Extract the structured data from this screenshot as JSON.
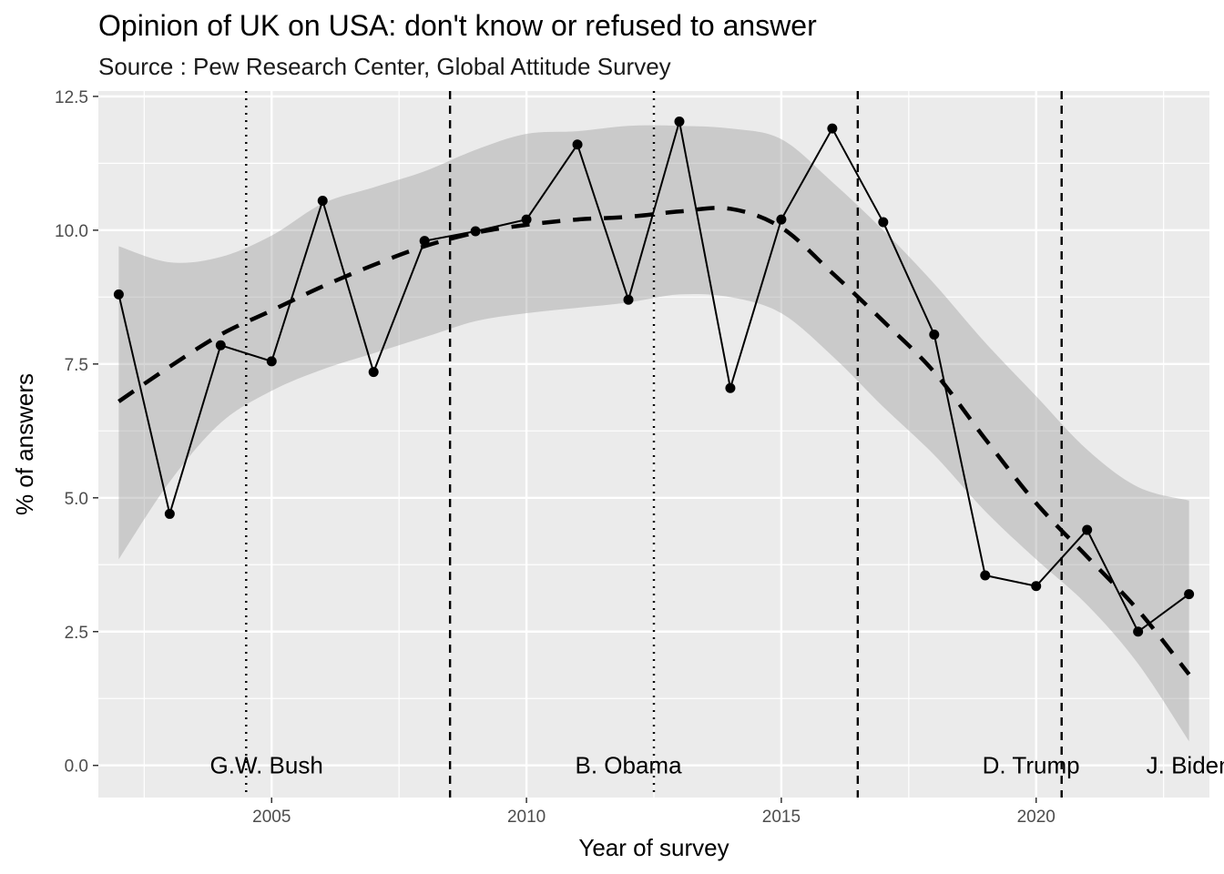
{
  "chart_data": {
    "type": "line",
    "title": "Opinion of UK on USA: don't know or refused to answer",
    "subtitle": "Source : Pew Research Center, Global Attitude Survey",
    "xlabel": "Year of survey",
    "ylabel": "% of answers",
    "xlim": [
      2001.6,
      2023.4
    ],
    "ylim": [
      -0.6,
      12.6
    ],
    "x_ticks": [
      2005,
      2010,
      2015,
      2020
    ],
    "x_tick_labels": [
      "2005",
      "2010",
      "2015",
      "2020"
    ],
    "y_ticks": [
      0,
      2.5,
      5,
      7.5,
      10,
      12.5
    ],
    "y_tick_labels": [
      "0.0",
      "2.5",
      "5.0",
      "7.5",
      "10.0",
      "12.5"
    ],
    "grid": true,
    "series": [
      {
        "x": [
          2002,
          2003,
          2004,
          2005,
          2006,
          2007,
          2008,
          2009,
          2010,
          2011,
          2012,
          2013,
          2014,
          2015,
          2016,
          2017,
          2018,
          2019,
          2020,
          2021,
          2022,
          2023
        ],
        "values": [
          8.8,
          4.7,
          7.85,
          7.55,
          10.55,
          7.35,
          9.8,
          9.98,
          10.2,
          11.6,
          8.7,
          12.03,
          7.05,
          10.2,
          11.9,
          10.15,
          8.05,
          3.55,
          3.35,
          4.4,
          2.5,
          3.2
        ]
      }
    ],
    "trend": {
      "style": "dashed",
      "x": [
        2002,
        2003,
        2004,
        2005,
        2006,
        2007,
        2008,
        2009,
        2010,
        2011,
        2012,
        2013,
        2014,
        2015,
        2016,
        2017,
        2018,
        2019,
        2020,
        2021,
        2022,
        2023
      ],
      "values": [
        6.8,
        7.45,
        8.05,
        8.5,
        8.95,
        9.35,
        9.7,
        9.95,
        10.1,
        10.2,
        10.25,
        10.35,
        10.4,
        10.05,
        9.2,
        8.3,
        7.35,
        6.1,
        4.9,
        3.9,
        2.9,
        1.7
      ],
      "band_upper": [
        9.7,
        9.4,
        9.5,
        9.9,
        10.5,
        10.8,
        11.1,
        11.5,
        11.8,
        11.85,
        11.95,
        11.95,
        11.9,
        11.7,
        10.9,
        10.0,
        9.0,
        7.9,
        6.9,
        5.9,
        5.2,
        4.95
      ],
      "band_lower": [
        3.85,
        5.3,
        6.4,
        7.0,
        7.4,
        7.7,
        8.0,
        8.3,
        8.45,
        8.55,
        8.65,
        8.8,
        8.75,
        8.45,
        7.65,
        6.7,
        5.8,
        4.75,
        3.85,
        3.0,
        1.9,
        0.45
      ]
    },
    "annotations": {
      "presidents": [
        {
          "label": "G.W. Bush",
          "x": 2004.9
        },
        {
          "label": "B. Obama",
          "x": 2012.0
        },
        {
          "label": "D. Trump",
          "x": 2019.9
        },
        {
          "label": "J. Biden",
          "x": 2023.0
        }
      ],
      "vlines": [
        {
          "x": 2004.5,
          "style": "dotted"
        },
        {
          "x": 2008.5,
          "style": "dashed"
        },
        {
          "x": 2012.5,
          "style": "dotted"
        },
        {
          "x": 2016.5,
          "style": "dashed"
        },
        {
          "x": 2020.5,
          "style": "dashed"
        }
      ]
    }
  }
}
